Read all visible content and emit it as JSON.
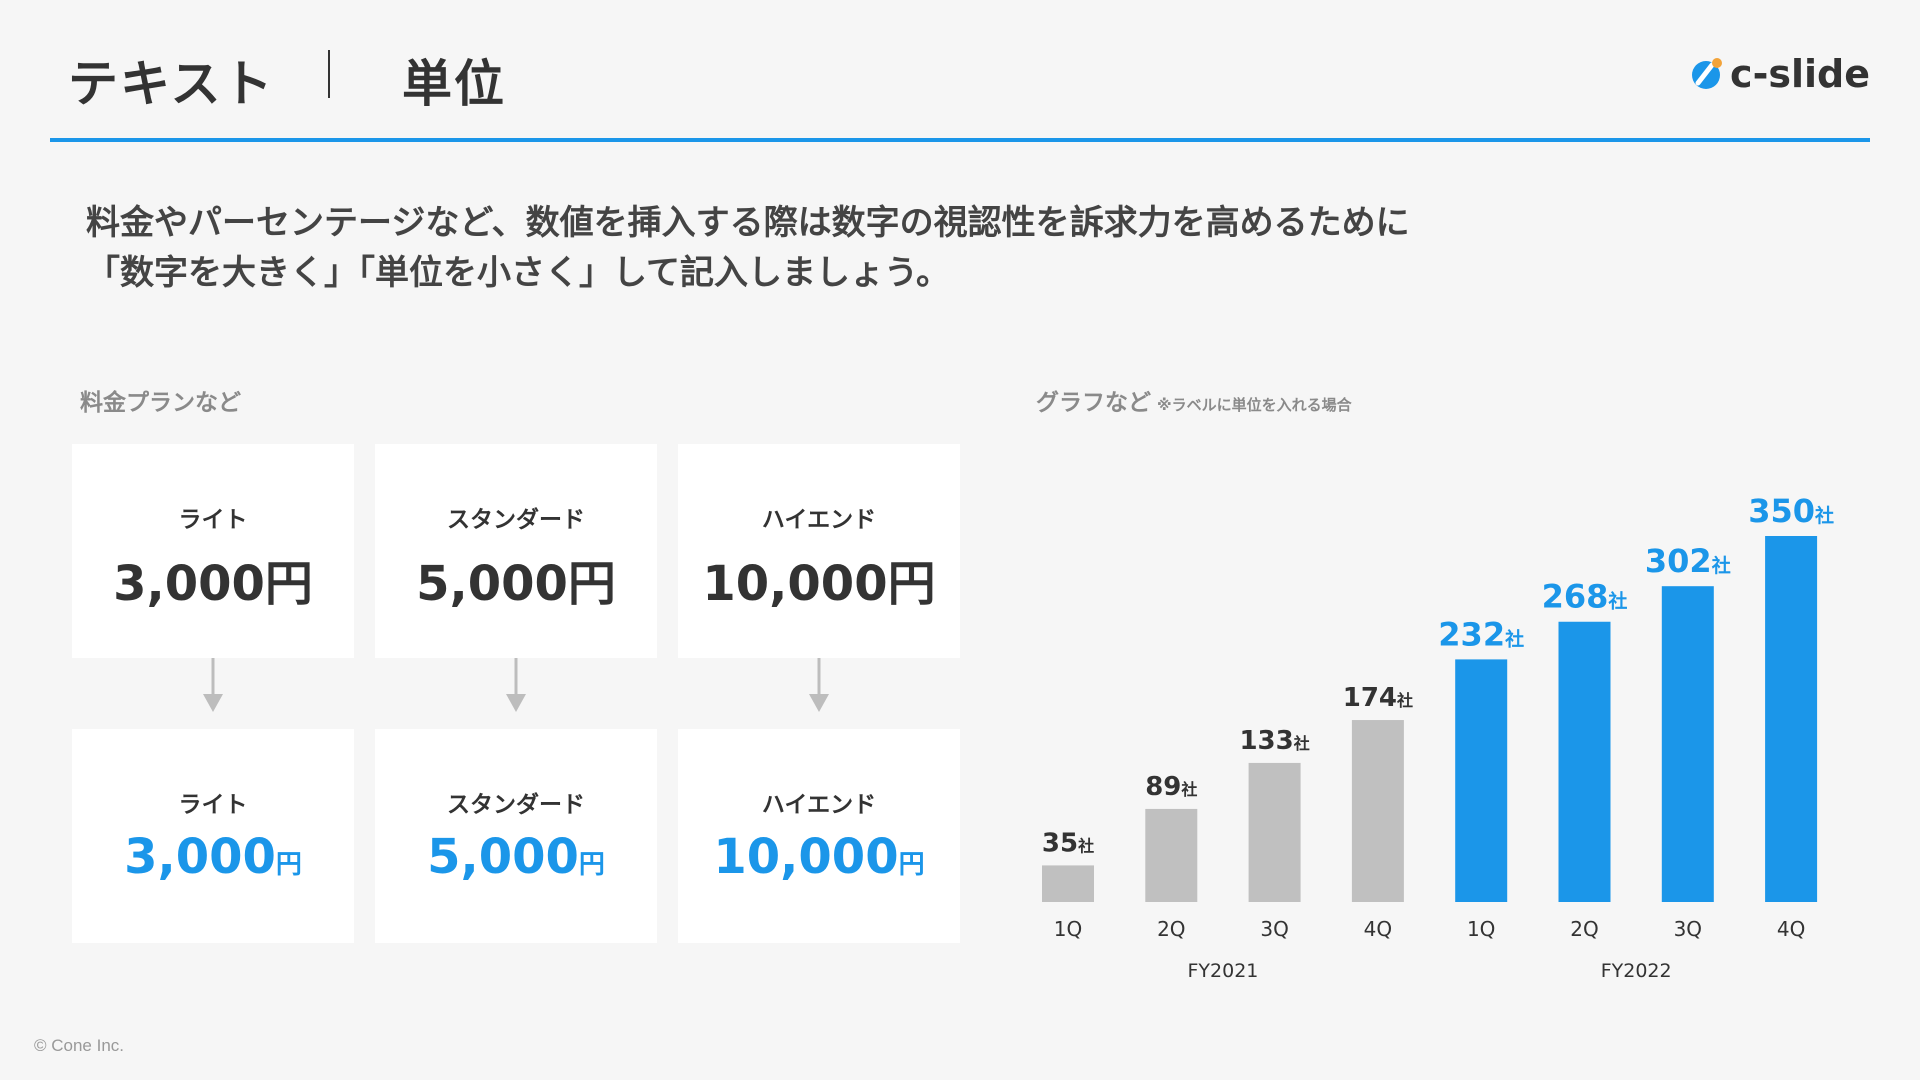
{
  "header": {
    "title": "テキスト",
    "subtitle": "単位",
    "logo_text": "c-slide"
  },
  "lead": {
    "line1": "料金やパーセンテージなど、数値を挿入する際は数字の視認性を訴求力を高めるために",
    "line2": "「数字を大きく」「単位を小さく」して記入しましょう。"
  },
  "pricing": {
    "label": "料金プランなど",
    "before": [
      {
        "plan": "ライト",
        "amount": "3,000",
        "unit": "円"
      },
      {
        "plan": "スタンダード",
        "amount": "5,000",
        "unit": "円"
      },
      {
        "plan": "ハイエンド",
        "amount": "10,000",
        "unit": "円"
      }
    ],
    "after": [
      {
        "plan": "ライト",
        "amount": "3,000",
        "unit": "円"
      },
      {
        "plan": "スタンダード",
        "amount": "5,000",
        "unit": "円"
      },
      {
        "plan": "ハイエンド",
        "amount": "10,000",
        "unit": "円"
      }
    ]
  },
  "graph": {
    "label": "グラフなど",
    "note": "※ラベルに単位を入れる場合"
  },
  "chart_data": {
    "type": "bar",
    "categories": [
      "1Q",
      "2Q",
      "3Q",
      "4Q",
      "1Q",
      "2Q",
      "3Q",
      "4Q"
    ],
    "groups": [
      {
        "label": "FY2021",
        "range": [
          0,
          3
        ],
        "color": "#c0c0c0",
        "label_color": "#333333"
      },
      {
        "label": "FY2022",
        "range": [
          4,
          7
        ],
        "color": "#1b96e9",
        "label_color": "#1b96e9"
      }
    ],
    "values": [
      35,
      89,
      133,
      174,
      232,
      268,
      302,
      350
    ],
    "value_unit": "社",
    "ylim": [
      0,
      350
    ],
    "grid": false
  },
  "colors": {
    "accent": "#1b96e9",
    "text": "#333333",
    "muted_bar": "#c0c0c0",
    "background": "#f6f6f6",
    "arrow": "#bdbdbd"
  },
  "footer": {
    "copyright": "© Cone Inc."
  }
}
